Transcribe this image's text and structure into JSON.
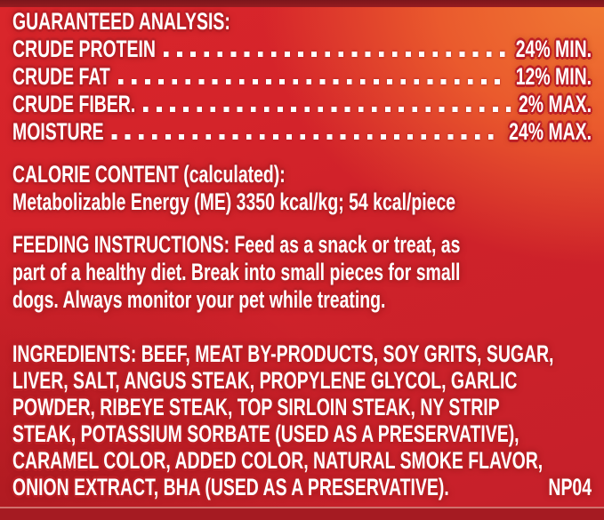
{
  "label": {
    "guaranteed_analysis": {
      "title": "GUARANTEED ANALYSIS:",
      "rows": [
        {
          "label": "CRUDE PROTEIN",
          "value": "24% MIN."
        },
        {
          "label": "CRUDE FAT",
          "value": "12% MIN."
        },
        {
          "label": "CRUDE FIBER.",
          "value": "2% MAX."
        },
        {
          "label": "MOISTURE",
          "value": "24% MAX."
        }
      ]
    },
    "calorie_content": {
      "heading": "CALORIE CONTENT (calculated):",
      "body": "Metabolizable Energy (ME) 3350 kcal/kg; 54 kcal/piece"
    },
    "feeding_instructions": {
      "lines": [
        "FEEDING INSTRUCTIONS: Feed as a snack or treat, as",
        "part of a healthy diet. Break into small pieces for small",
        "dogs. Always monitor your pet while treating."
      ]
    },
    "ingredients": {
      "lines": [
        "INGREDIENTS: BEEF, MEAT BY-PRODUCTS, SOY GRITS, SUGAR,",
        "LIVER, SALT, ANGUS STEAK, PROPYLENE GLYCOL, GARLIC",
        "POWDER, RIBEYE STEAK, TOP SIRLOIN STEAK, NY STRIP",
        "STEAK, POTASSIUM SORBATE (USED AS A PRESERVATIVE),",
        "CARAMEL COLOR, ADDED COLOR, NATURAL SMOKE FLAVOR,"
      ],
      "last_line": "ONION EXTRACT, BHA (USED AS A PRESERVATIVE).",
      "code": "NP04"
    }
  },
  "colors": {
    "background_red": "#cc2129",
    "accent_orange_corner": "#ee6f31",
    "text_white": "#ffffff",
    "text_outline_red": "#bc1f25",
    "top_edge_band": "#8e1a1f",
    "bottom_edge_band": "#a51b22"
  }
}
